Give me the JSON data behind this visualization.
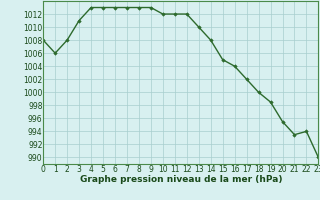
{
  "x": [
    0,
    1,
    2,
    3,
    4,
    5,
    6,
    7,
    8,
    9,
    10,
    11,
    12,
    13,
    14,
    15,
    16,
    17,
    18,
    19,
    20,
    21,
    22,
    23
  ],
  "y": [
    1008,
    1006,
    1008,
    1011,
    1013,
    1013,
    1013,
    1013,
    1013,
    1013,
    1012,
    1012,
    1012,
    1010,
    1008,
    1005,
    1004,
    1002,
    1000,
    998.5,
    995.5,
    993.5,
    994,
    990
  ],
  "line_color": "#2d6a2d",
  "marker": "D",
  "marker_size": 1.8,
  "bg_color": "#d8f0f0",
  "grid_color": "#a8cece",
  "xlabel": "Graphe pression niveau de la mer (hPa)",
  "xlabel_color": "#1a4a1a",
  "xlabel_fontsize": 6.5,
  "xlim": [
    0,
    23
  ],
  "ylim": [
    989,
    1014
  ],
  "yticks": [
    990,
    992,
    994,
    996,
    998,
    1000,
    1002,
    1004,
    1006,
    1008,
    1010,
    1012
  ],
  "xticks": [
    0,
    1,
    2,
    3,
    4,
    5,
    6,
    7,
    8,
    9,
    10,
    11,
    12,
    13,
    14,
    15,
    16,
    17,
    18,
    19,
    20,
    21,
    22,
    23
  ],
  "tick_fontsize": 5.5,
  "tick_color": "#1a4a1a",
  "line_width": 1.0
}
